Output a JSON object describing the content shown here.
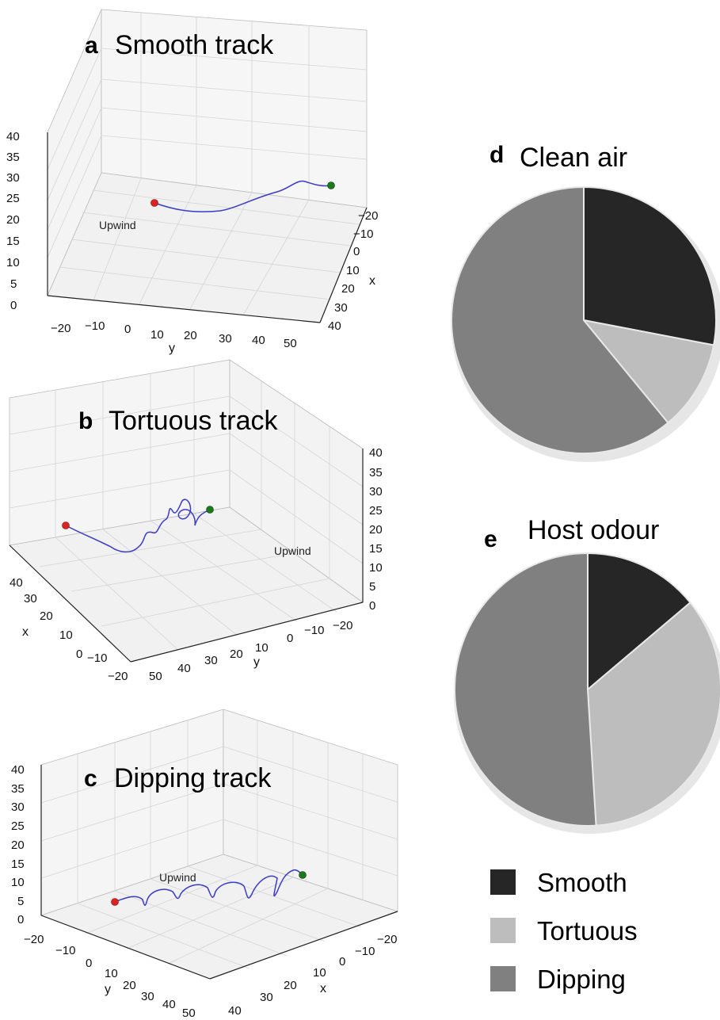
{
  "panels": {
    "a": {
      "letter": "a",
      "title": "Smooth track",
      "annotation": "Upwind",
      "z_ticks": [
        "40",
        "35",
        "30",
        "25",
        "20",
        "15",
        "10",
        "5",
        "0"
      ],
      "y_ticks": [
        "−20",
        "−10",
        "0",
        "10",
        "20",
        "30",
        "40",
        "50"
      ],
      "y_label": "y",
      "x_ticks": [
        "−20",
        "−10",
        "0",
        "10",
        "20",
        "30",
        "40"
      ],
      "x_label": "x"
    },
    "b": {
      "letter": "b",
      "title": "Tortuous track",
      "annotation": "Upwind",
      "z_ticks": [
        "40",
        "35",
        "30",
        "25",
        "20",
        "15",
        "10",
        "5",
        "0"
      ],
      "x_ticks": [
        "40",
        "30",
        "20",
        "10",
        "0",
        "−10",
        "−20"
      ],
      "x_label": "x",
      "y_ticks": [
        "50",
        "40",
        "30",
        "20",
        "10",
        "0",
        "−10",
        "−20"
      ],
      "y_label": "y"
    },
    "c": {
      "letter": "c",
      "title": "Dipping track",
      "annotation": "Upwind",
      "z_ticks": [
        "40",
        "35",
        "30",
        "25",
        "20",
        "15",
        "10",
        "5",
        "0"
      ],
      "y_ticks": [
        "−20",
        "−10",
        "0",
        "10",
        "20",
        "30",
        "40",
        "50"
      ],
      "y_label": "y",
      "x_ticks": [
        "40",
        "30",
        "20",
        "10",
        "0",
        "−10",
        "−20"
      ],
      "x_label": "x"
    },
    "d": {
      "letter": "d",
      "title": "Clean air"
    },
    "e": {
      "letter": "e",
      "title": "Host odour"
    }
  },
  "legend": {
    "smooth": "Smooth",
    "tortuous": "Tortuous",
    "dipping": "Dipping"
  },
  "colors": {
    "smooth": "#262626",
    "tortuous": "#bdbdbd",
    "dipping": "#808080",
    "track": "#3333cc",
    "start_marker": "#dd2222",
    "end_marker": "#1a7a1a",
    "grid": "#d8d8d8",
    "pane": "#f2f2f2"
  },
  "chart_data": [
    {
      "type": "pie",
      "title": "Clean air",
      "categories": [
        "Smooth",
        "Tortuous",
        "Dipping"
      ],
      "values": [
        28,
        11,
        61
      ]
    },
    {
      "type": "pie",
      "title": "Host odour",
      "categories": [
        "Smooth",
        "Tortuous",
        "Dipping"
      ],
      "values": [
        14,
        35,
        51
      ]
    }
  ]
}
